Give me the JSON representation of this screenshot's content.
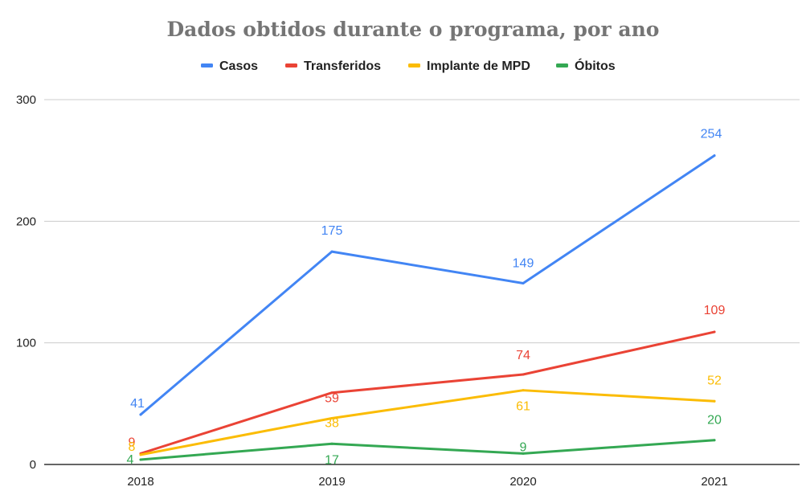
{
  "chart_data": {
    "type": "line",
    "title": "Dados obtidos durante o programa, por ano",
    "xlabel": "",
    "ylabel": "",
    "categories": [
      "2018",
      "2019",
      "2020",
      "2021"
    ],
    "ylim": [
      0,
      300
    ],
    "yticks": [
      0,
      100,
      200,
      300
    ],
    "grid": true,
    "legend_position": "top",
    "series": [
      {
        "name": "Casos",
        "color": "#4285f4",
        "values": [
          41,
          175,
          149,
          254
        ]
      },
      {
        "name": "Transferidos",
        "color": "#ea4335",
        "values": [
          9,
          59,
          74,
          109
        ]
      },
      {
        "name": "Implante de MPD",
        "color": "#fbbc04",
        "values": [
          8,
          38,
          61,
          52
        ]
      },
      {
        "name": "Óbitos",
        "color": "#34a853",
        "values": [
          4,
          17,
          9,
          20
        ]
      }
    ]
  }
}
